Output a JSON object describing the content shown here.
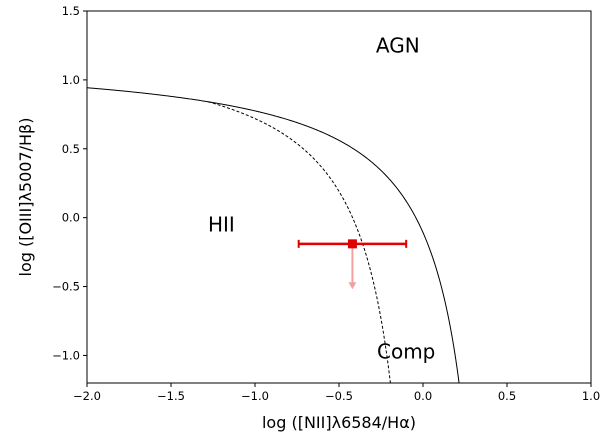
{
  "chart_data": {
    "type": "scatter",
    "title": "",
    "xlabel": "log ([NII]λ6584/Hα)",
    "ylabel": "log ([OIII]λ5007/Hβ)",
    "xlim": [
      -2.0,
      1.0
    ],
    "ylim": [
      -1.2,
      1.5
    ],
    "x_ticks": [
      "−2.0",
      "−1.5",
      "−1.0",
      "−0.5",
      "0.0",
      "0.5",
      "1.0"
    ],
    "x_tick_values": [
      -2.0,
      -1.5,
      -1.0,
      -0.5,
      0.0,
      0.5,
      1.0
    ],
    "y_ticks": [
      "−1.0",
      "−0.5",
      "0.0",
      "0.5",
      "1.0",
      "1.5"
    ],
    "y_tick_values": [
      -1.0,
      -0.5,
      0.0,
      0.5,
      1.0,
      1.5
    ],
    "grid": false,
    "region_labels": [
      {
        "text": "AGN",
        "x": -0.15,
        "y": 1.25
      },
      {
        "text": "HII",
        "x": -1.2,
        "y": -0.05
      },
      {
        "text": "Comp",
        "x": -0.1,
        "y": -0.97
      }
    ],
    "curves": [
      {
        "style": "solid",
        "x_max": 0.47,
        "x_min": -2.0
      },
      {
        "style": "dashed",
        "x_max": 0.05,
        "x_min": -1.28
      }
    ],
    "points": [
      {
        "x": -0.42,
        "y": -0.19,
        "xerr": [
          0.32,
          0.32
        ],
        "upper_limit_arrow_to": -0.52,
        "color": "#e00000",
        "arrow_color": "#f4a0a0"
      }
    ]
  }
}
